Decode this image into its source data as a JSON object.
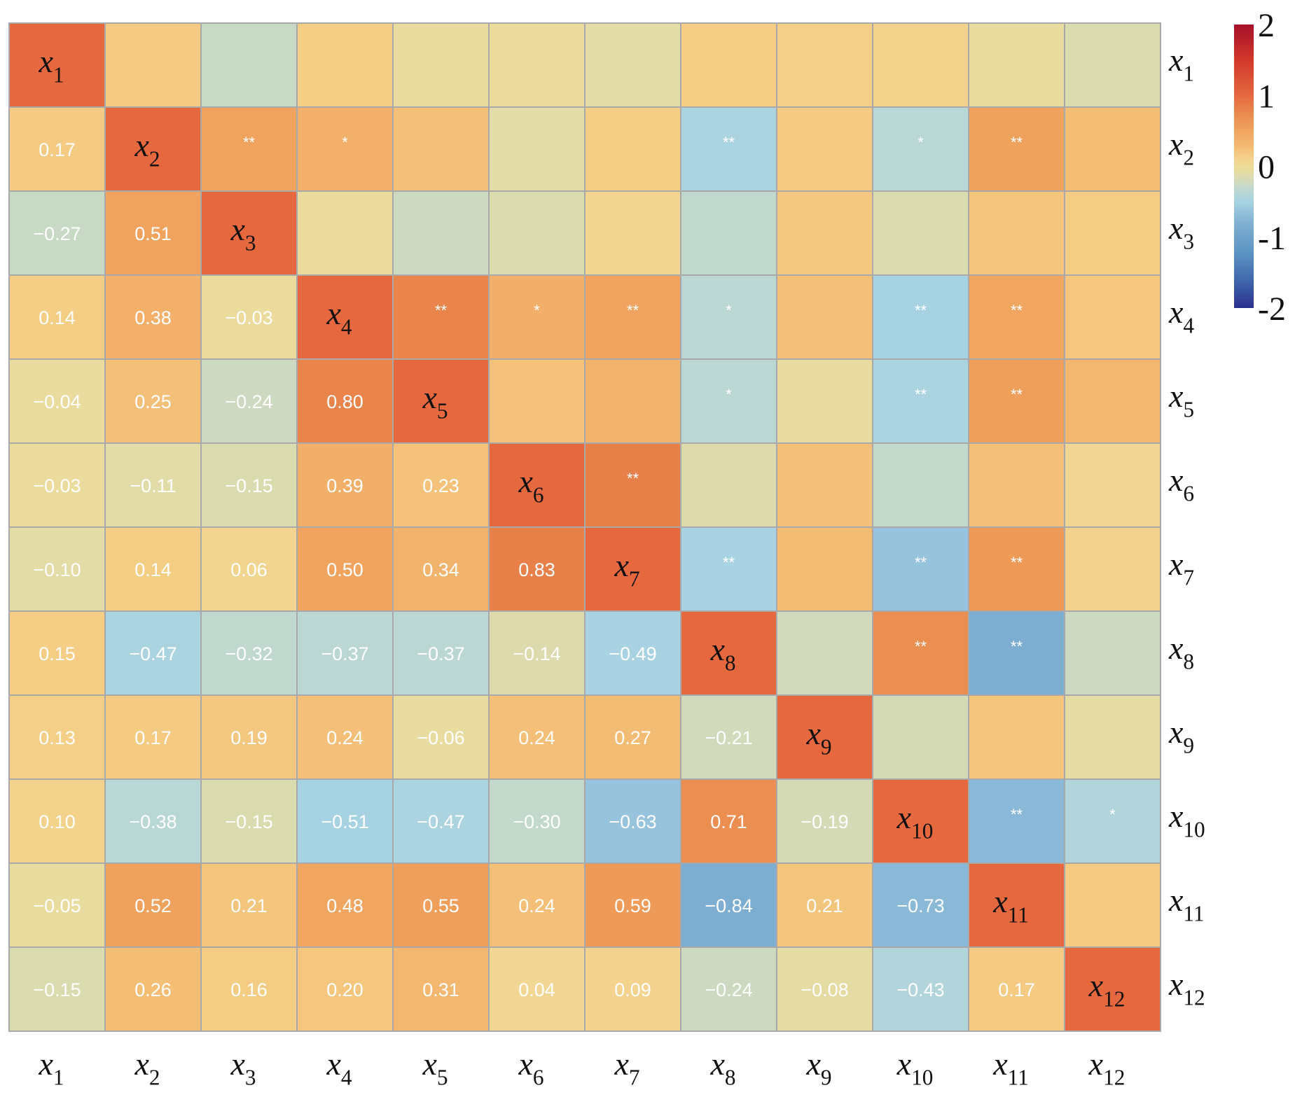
{
  "chart_data": {
    "type": "heatmap",
    "title": "",
    "variables": [
      {
        "base": "x",
        "idx": "1"
      },
      {
        "base": "x",
        "idx": "2"
      },
      {
        "base": "x",
        "idx": "3"
      },
      {
        "base": "x",
        "idx": "4"
      },
      {
        "base": "x",
        "idx": "5"
      },
      {
        "base": "x",
        "idx": "6"
      },
      {
        "base": "x",
        "idx": "7"
      },
      {
        "base": "x",
        "idx": "8"
      },
      {
        "base": "x",
        "idx": "9"
      },
      {
        "base": "x",
        "idx": "10"
      },
      {
        "base": "x",
        "idx": "11"
      },
      {
        "base": "x",
        "idx": "12"
      }
    ],
    "lower_triangle_values": [
      [],
      [
        "0.17"
      ],
      [
        "-0.27",
        "0.51"
      ],
      [
        "0.14",
        "0.38",
        "-0.03"
      ],
      [
        "-0.04",
        "0.25",
        "-0.24",
        "0.80"
      ],
      [
        "-0.03",
        "-0.11",
        "-0.15",
        "0.39",
        "0.23"
      ],
      [
        "-0.10",
        "0.14",
        "0.06",
        "0.50",
        "0.34",
        "0.83"
      ],
      [
        "0.15",
        "-0.47",
        "-0.32",
        "-0.37",
        "-0.37",
        "-0.14",
        "-0.49"
      ],
      [
        "0.13",
        "0.17",
        "0.19",
        "0.24",
        "-0.06",
        "0.24",
        "0.27",
        "-0.21"
      ],
      [
        "0.10",
        "-0.38",
        "-0.15",
        "-0.51",
        "-0.47",
        "-0.30",
        "-0.63",
        "0.71",
        "-0.19"
      ],
      [
        "-0.05",
        "0.52",
        "0.21",
        "0.48",
        "0.55",
        "0.24",
        "0.59",
        "-0.84",
        "0.21",
        "-0.73"
      ],
      [
        "-0.15",
        "0.26",
        "0.16",
        "0.20",
        "0.31",
        "0.04",
        "0.09",
        "-0.24",
        "-0.08",
        "-0.43",
        "0.17"
      ]
    ],
    "upper_triangle_significance": [
      [
        "",
        "",
        "",
        "",
        "",
        "",
        "",
        "",
        "",
        "",
        "",
        ""
      ],
      [
        "",
        "",
        "**",
        "*",
        "",
        "",
        "",
        "**",
        "",
        "*",
        "**",
        ""
      ],
      [
        "",
        "",
        "",
        "",
        "",
        "",
        "",
        "",
        "",
        "",
        "",
        ""
      ],
      [
        "",
        "",
        "",
        "",
        "**",
        "*",
        "**",
        "*",
        "",
        "**",
        "**",
        ""
      ],
      [
        "",
        "",
        "",
        "",
        "",
        "",
        "",
        "*",
        "",
        "**",
        "**",
        ""
      ],
      [
        "",
        "",
        "",
        "",
        "",
        "",
        "**",
        "",
        "",
        "",
        "",
        ""
      ],
      [
        "",
        "",
        "",
        "",
        "",
        "",
        "",
        "**",
        "",
        "**",
        "**",
        ""
      ],
      [
        "",
        "",
        "",
        "",
        "",
        "",
        "",
        "",
        "",
        "**",
        "**",
        ""
      ],
      [
        "",
        "",
        "",
        "",
        "",
        "",
        "",
        "",
        "",
        "",
        "",
        ""
      ],
      [
        "",
        "",
        "",
        "",
        "",
        "",
        "",
        "",
        "",
        "",
        "**",
        "*"
      ],
      [
        "",
        "",
        "",
        "",
        "",
        "",
        "",
        "",
        "",
        "",
        "",
        ""
      ],
      [
        "",
        "",
        "",
        "",
        "",
        "",
        "",
        "",
        "",
        "",
        "",
        ""
      ]
    ],
    "diagonal_value": 1,
    "colorbar": {
      "range": [
        -2,
        2
      ],
      "ticks": [
        "2",
        "1",
        "0",
        "-1",
        "-2"
      ],
      "tick_values": [
        2,
        1,
        0,
        -1,
        -2
      ]
    },
    "colorscale": [
      [
        -2,
        "#2b2f8f"
      ],
      [
        -1.6,
        "#3f69ad"
      ],
      [
        -1.2,
        "#5e95c4"
      ],
      [
        -1,
        "#6fa3cc"
      ],
      [
        -0.8,
        "#80b1d2"
      ],
      [
        -0.5,
        "#a8d3e3"
      ],
      [
        -0.3,
        "#c3d9cc"
      ],
      [
        -0.1,
        "#e3dca6"
      ],
      [
        0,
        "#efdb98"
      ],
      [
        0.15,
        "#f5cd85"
      ],
      [
        0.3,
        "#f3b871"
      ],
      [
        0.5,
        "#f0a45f"
      ],
      [
        0.8,
        "#e8844c"
      ],
      [
        1,
        "#e5683f"
      ],
      [
        1.5,
        "#d2382b"
      ],
      [
        2,
        "#a5102a"
      ]
    ]
  }
}
